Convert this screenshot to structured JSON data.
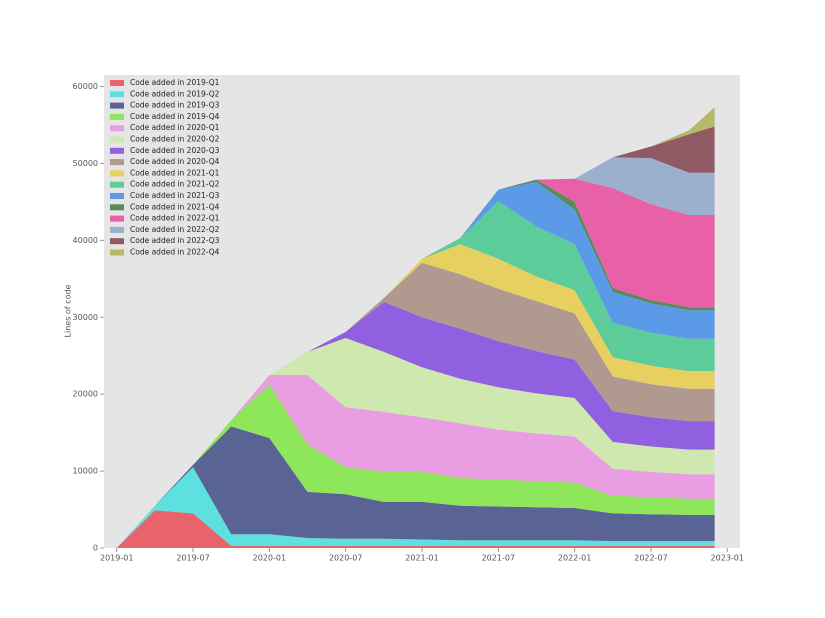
{
  "chart_data": {
    "type": "stackedarea",
    "y_label": "Lines of code",
    "x": [
      "2019-01",
      "2019-04",
      "2019-07",
      "2019-10",
      "2020-01",
      "2020-04",
      "2020-07",
      "2020-10",
      "2021-01",
      "2021-04",
      "2021-07",
      "2021-10",
      "2022-01",
      "2022-04",
      "2022-07",
      "2022-10",
      "2022-12"
    ],
    "xlim": [
      "2018-12",
      "2023-02"
    ],
    "xticks": [
      "2019-01",
      "2019-07",
      "2020-01",
      "2020-07",
      "2021-01",
      "2021-07",
      "2022-01",
      "2022-07",
      "2023-01"
    ],
    "ylim": [
      0,
      61500
    ],
    "yticks": [
      0,
      10000,
      20000,
      30000,
      40000,
      50000,
      60000
    ],
    "legend": "upper left",
    "series": [
      {
        "name": "Code added in 2019-Q1",
        "color": "#e8646a",
        "values": [
          0,
          4900,
          4500,
          300,
          300,
          300,
          300,
          300,
          300,
          300,
          300,
          300,
          300,
          300,
          300,
          300,
          300
        ]
      },
      {
        "name": "Code added in 2019-Q2",
        "color": "#5fe0e0",
        "values": [
          0,
          600,
          6000,
          1500,
          1500,
          1000,
          900,
          900,
          800,
          700,
          700,
          700,
          700,
          600,
          600,
          600,
          600
        ]
      },
      {
        "name": "Code added in 2019-Q3",
        "color": "#5a6494",
        "values": [
          0,
          0,
          300,
          14000,
          12500,
          6000,
          5800,
          4800,
          4900,
          4500,
          4400,
          4300,
          4200,
          3600,
          3500,
          3400,
          3400
        ]
      },
      {
        "name": "Code added in 2019-Q4",
        "color": "#8ee65a",
        "values": [
          0,
          0,
          0,
          800,
          7000,
          6200,
          3500,
          3900,
          3900,
          3600,
          3500,
          3400,
          3300,
          2300,
          2200,
          2100,
          2100
        ]
      },
      {
        "name": "Code added in 2020-Q1",
        "color": "#e89ee0",
        "values": [
          0,
          0,
          0,
          0,
          1200,
          9000,
          7800,
          7800,
          7100,
          7100,
          6500,
          6200,
          6000,
          3500,
          3300,
          3200,
          3200
        ]
      },
      {
        "name": "Code added in 2020-Q2",
        "color": "#cfe8b0",
        "values": [
          0,
          0,
          0,
          0,
          0,
          3000,
          9000,
          7800,
          6500,
          5800,
          5500,
          5200,
          5000,
          3500,
          3300,
          3200,
          3200
        ]
      },
      {
        "name": "Code added in 2020-Q3",
        "color": "#9060e0",
        "values": [
          0,
          0,
          0,
          0,
          0,
          0,
          800,
          6500,
          6500,
          6500,
          6000,
          5500,
          5000,
          4000,
          3800,
          3700,
          3700
        ]
      },
      {
        "name": "Code added in 2020-Q4",
        "color": "#b09a90",
        "values": [
          0,
          0,
          0,
          0,
          0,
          0,
          0,
          500,
          7100,
          7100,
          6800,
          6500,
          6000,
          4500,
          4300,
          4200,
          4200
        ]
      },
      {
        "name": "Code added in 2021-Q1",
        "color": "#e8d060",
        "values": [
          0,
          0,
          0,
          0,
          0,
          0,
          0,
          0,
          500,
          3900,
          3900,
          3200,
          3000,
          2500,
          2400,
          2300,
          2300
        ]
      },
      {
        "name": "Code added in 2021-Q2",
        "color": "#5ccc9a",
        "values": [
          0,
          0,
          0,
          0,
          0,
          0,
          0,
          0,
          0,
          800,
          7500,
          6500,
          6000,
          4500,
          4300,
          4200,
          4200
        ]
      },
      {
        "name": "Code added in 2021-Q3",
        "color": "#5a9ae6",
        "values": [
          0,
          0,
          0,
          0,
          0,
          0,
          0,
          0,
          0,
          0,
          1500,
          5800,
          4500,
          4000,
          3800,
          3700,
          3700
        ]
      },
      {
        "name": "Code added in 2021-Q4",
        "color": "#5a8a5a",
        "values": [
          0,
          0,
          0,
          0,
          0,
          0,
          0,
          0,
          0,
          0,
          0,
          300,
          1000,
          500,
          400,
          400,
          400
        ]
      },
      {
        "name": "Code added in 2022-Q1",
        "color": "#e860a8",
        "values": [
          0,
          0,
          0,
          0,
          0,
          0,
          0,
          0,
          0,
          0,
          0,
          0,
          3000,
          13000,
          12500,
          12000,
          12000
        ]
      },
      {
        "name": "Code added in 2022-Q2",
        "color": "#9ab0cc",
        "values": [
          0,
          0,
          0,
          0,
          0,
          0,
          0,
          0,
          0,
          0,
          0,
          0,
          0,
          4000,
          6000,
          5500,
          5500
        ]
      },
      {
        "name": "Code added in 2022-Q3",
        "color": "#905a64",
        "values": [
          0,
          0,
          0,
          0,
          0,
          0,
          0,
          0,
          0,
          0,
          0,
          0,
          0,
          0,
          1500,
          5000,
          6000
        ]
      },
      {
        "name": "Code added in 2022-Q4",
        "color": "#b8b86a",
        "values": [
          0,
          0,
          0,
          0,
          0,
          0,
          0,
          0,
          0,
          0,
          0,
          0,
          0,
          0,
          0,
          500,
          2500
        ]
      }
    ]
  }
}
